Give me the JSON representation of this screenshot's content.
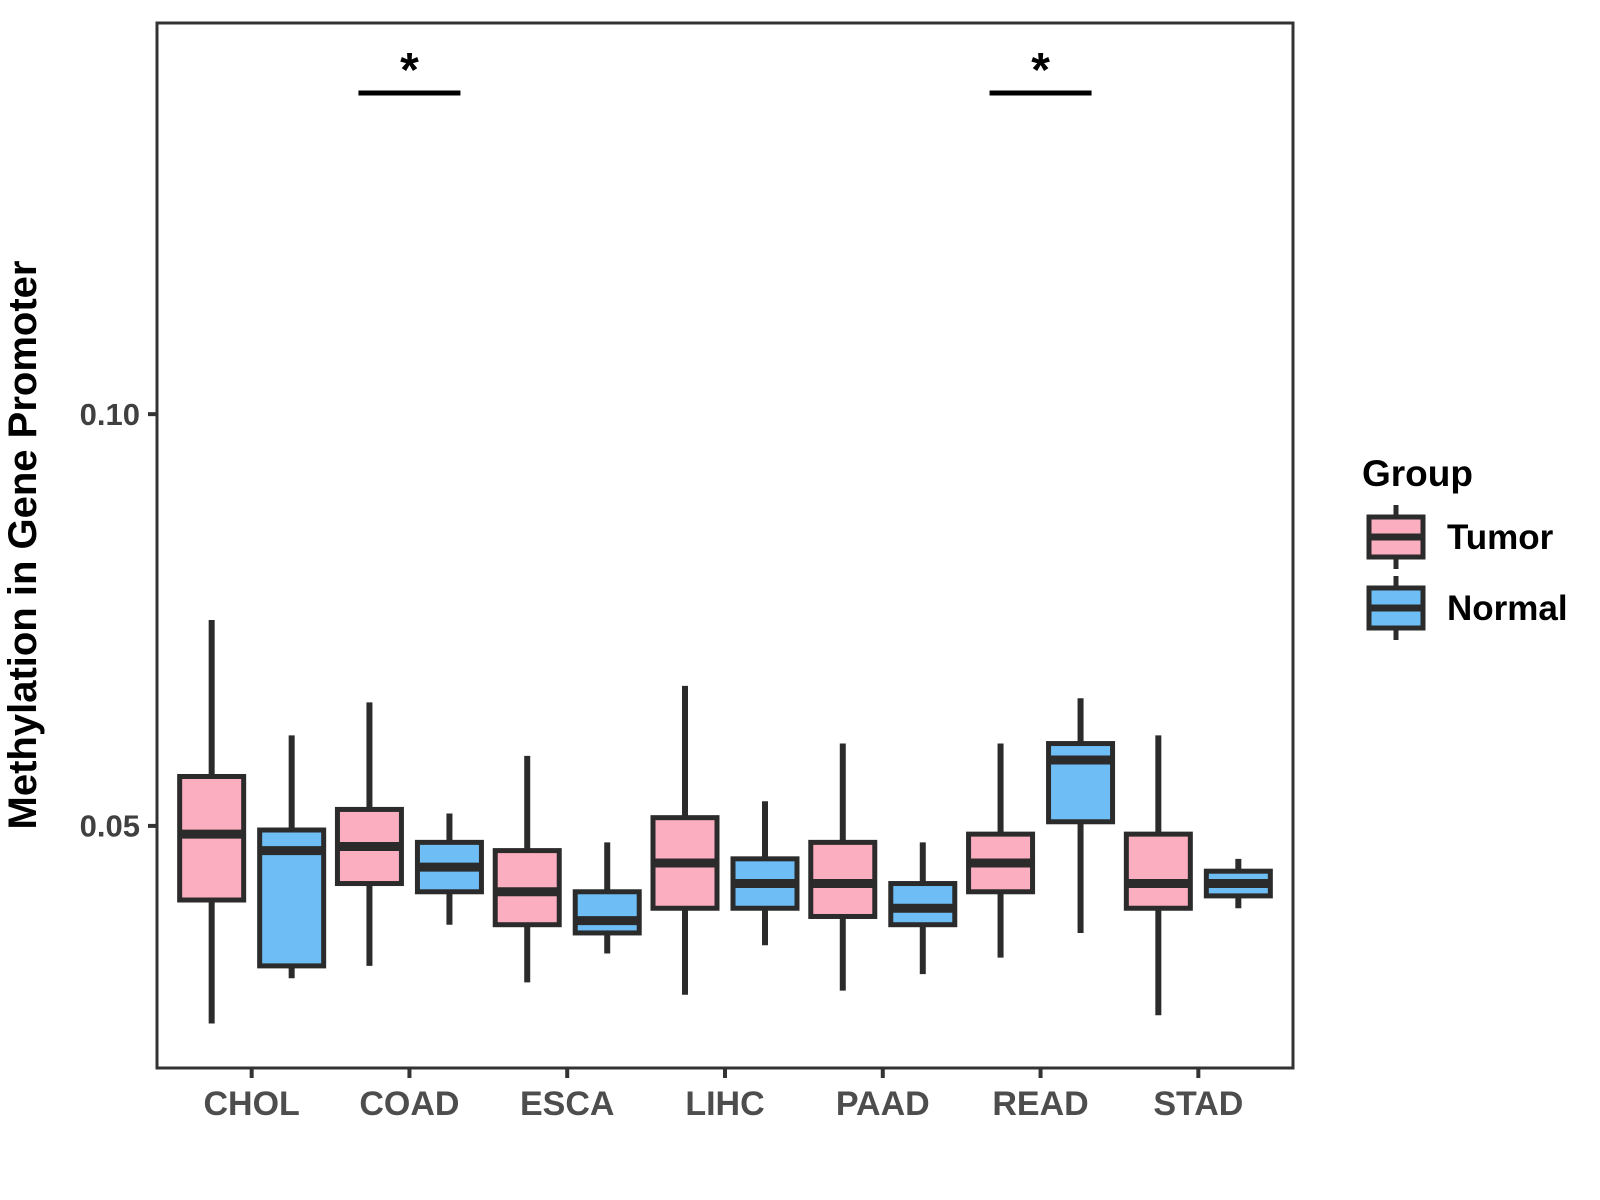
{
  "figure": {
    "background": "#ffffff"
  },
  "legend": {
    "title": "Group",
    "entries": [
      {
        "label": "Tumor",
        "color": "#FBAEC0"
      },
      {
        "label": "Normal",
        "color": "#6EBEF5"
      }
    ]
  },
  "chart_data": {
    "type": "boxplot",
    "title": "",
    "xlabel": "",
    "ylabel": "Methylation in Gene Promoter",
    "categories": [
      "CHOL",
      "COAD",
      "ESCA",
      "LIHC",
      "PAAD",
      "READ",
      "STAD"
    ],
    "groups": [
      "Tumor",
      "Normal"
    ],
    "series": [
      {
        "name": "Tumor",
        "color": "#FBAEC0",
        "boxes": [
          {
            "category": "CHOL",
            "whisker_low": 0.026,
            "q1": 0.041,
            "median": 0.049,
            "q3": 0.056,
            "whisker_high": 0.075
          },
          {
            "category": "COAD",
            "whisker_low": 0.033,
            "q1": 0.043,
            "median": 0.0475,
            "q3": 0.052,
            "whisker_high": 0.065
          },
          {
            "category": "ESCA",
            "whisker_low": 0.031,
            "q1": 0.038,
            "median": 0.042,
            "q3": 0.047,
            "whisker_high": 0.0585
          },
          {
            "category": "LIHC",
            "whisker_low": 0.0295,
            "q1": 0.04,
            "median": 0.0455,
            "q3": 0.051,
            "whisker_high": 0.067
          },
          {
            "category": "PAAD",
            "whisker_low": 0.03,
            "q1": 0.039,
            "median": 0.043,
            "q3": 0.048,
            "whisker_high": 0.06
          },
          {
            "category": "READ",
            "whisker_low": 0.034,
            "q1": 0.042,
            "median": 0.0455,
            "q3": 0.049,
            "whisker_high": 0.06
          },
          {
            "category": "STAD",
            "whisker_low": 0.027,
            "q1": 0.04,
            "median": 0.043,
            "q3": 0.049,
            "whisker_high": 0.061
          }
        ]
      },
      {
        "name": "Normal",
        "color": "#6EBEF5",
        "boxes": [
          {
            "category": "CHOL",
            "whisker_low": 0.0315,
            "q1": 0.033,
            "median": 0.047,
            "q3": 0.0495,
            "whisker_high": 0.061
          },
          {
            "category": "COAD",
            "whisker_low": 0.038,
            "q1": 0.042,
            "median": 0.045,
            "q3": 0.048,
            "whisker_high": 0.0515
          },
          {
            "category": "ESCA",
            "whisker_low": 0.0345,
            "q1": 0.037,
            "median": 0.0385,
            "q3": 0.042,
            "whisker_high": 0.048
          },
          {
            "category": "LIHC",
            "whisker_low": 0.0355,
            "q1": 0.04,
            "median": 0.043,
            "q3": 0.046,
            "whisker_high": 0.053
          },
          {
            "category": "PAAD",
            "whisker_low": 0.032,
            "q1": 0.038,
            "median": 0.04,
            "q3": 0.043,
            "whisker_high": 0.048
          },
          {
            "category": "READ",
            "whisker_low": 0.037,
            "q1": 0.0505,
            "median": 0.058,
            "q3": 0.06,
            "whisker_high": 0.0655
          },
          {
            "category": "STAD",
            "whisker_low": 0.04,
            "q1": 0.0415,
            "median": 0.043,
            "q3": 0.0445,
            "whisker_high": 0.046
          }
        ]
      }
    ],
    "y_ticks": [
      {
        "value": 0.05,
        "label": "0.05"
      },
      {
        "value": 0.1,
        "label": "0.10"
      }
    ],
    "ylim": [
      0.0206,
      0.1475
    ],
    "grid": false,
    "legend_position": "right",
    "significance": [
      {
        "category": "COAD",
        "label": "*",
        "bar_y": 0.139
      },
      {
        "category": "READ",
        "label": "*",
        "bar_y": 0.139
      }
    ],
    "style": {
      "box_stroke": "#2b2b2b",
      "panel_border": "#333333",
      "tick_color": "#333333",
      "y_tick_label_color": "#404040",
      "x_tick_label_color": "#4d4d4d",
      "axis_title_color": "#000000",
      "legend_text_color": "#000000",
      "significance_color": "#000000"
    }
  }
}
